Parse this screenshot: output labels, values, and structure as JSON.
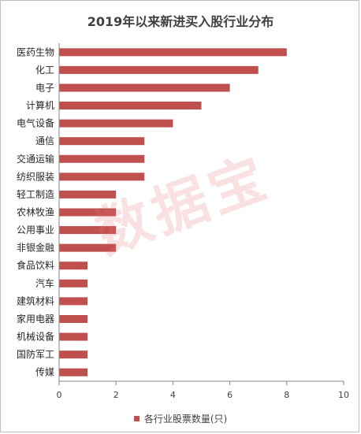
{
  "chart_data": {
    "type": "bar",
    "orientation": "horizontal",
    "title": "2019年以来新进买入股行业分布",
    "categories": [
      "医药生物",
      "化工",
      "电子",
      "计算机",
      "电气设备",
      "通信",
      "交通运输",
      "纺织服装",
      "轻工制造",
      "农林牧渔",
      "公用事业",
      "非银金融",
      "食品饮料",
      "汽车",
      "建筑材料",
      "家用电器",
      "机械设备",
      "国防军工",
      "传媒"
    ],
    "series": [
      {
        "name": "各行业股票数量(只)",
        "values": [
          8,
          7,
          6,
          5,
          4,
          3,
          3,
          3,
          2,
          2,
          2,
          2,
          1,
          1,
          1,
          1,
          1,
          1,
          1
        ]
      }
    ],
    "xlim": [
      0,
      10
    ],
    "xticks": [
      0,
      2,
      4,
      6,
      8,
      10
    ],
    "grid": false,
    "legend_position": "bottom",
    "colors": {
      "bar": "#c0504d"
    }
  },
  "watermark": "数据宝"
}
